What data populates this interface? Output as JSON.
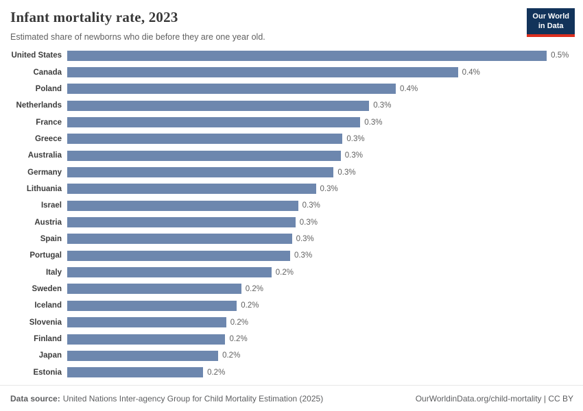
{
  "header": {
    "title": "Infant mortality rate, 2023",
    "subtitle": "Estimated share of newborns who die before they are one year old.",
    "logo": {
      "line1": "Our World",
      "line2": "in Data",
      "bg_color": "#12335a",
      "accent_color": "#dc2f1f"
    }
  },
  "chart_data": {
    "type": "bar",
    "orientation": "horizontal",
    "title": "Infant mortality rate, 2023",
    "xlabel": "",
    "ylabel": "",
    "xlim": [
      0,
      0.57
    ],
    "grid": false,
    "legend": false,
    "bar_color": "#6d87ae",
    "value_suffix": "%",
    "categories": [
      "United States",
      "Canada",
      "Poland",
      "Netherlands",
      "France",
      "Greece",
      "Australia",
      "Germany",
      "Lithuania",
      "Israel",
      "Austria",
      "Spain",
      "Portugal",
      "Italy",
      "Sweden",
      "Iceland",
      "Slovenia",
      "Finland",
      "Japan",
      "Estonia"
    ],
    "values": [
      0.54,
      0.44,
      0.37,
      0.34,
      0.33,
      0.31,
      0.308,
      0.3,
      0.28,
      0.26,
      0.257,
      0.253,
      0.251,
      0.23,
      0.196,
      0.191,
      0.179,
      0.178,
      0.17,
      0.153
    ],
    "labels": [
      "0.5%",
      "0.4%",
      "0.4%",
      "0.3%",
      "0.3%",
      "0.3%",
      "0.3%",
      "0.3%",
      "0.3%",
      "0.3%",
      "0.3%",
      "0.3%",
      "0.3%",
      "0.2%",
      "0.2%",
      "0.2%",
      "0.2%",
      "0.2%",
      "0.2%",
      "0.2%"
    ]
  },
  "footer": {
    "datasource_label": "Data source:",
    "datasource_text": "United Nations Inter-agency Group for Child Mortality Estimation (2025)",
    "link_text": "OurWorldinData.org/child-mortality | CC BY"
  }
}
